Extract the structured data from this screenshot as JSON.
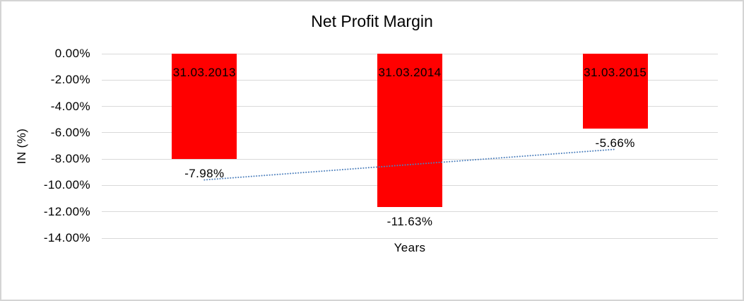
{
  "window": {
    "background": "#ffffff",
    "border_color": "#d4d4d4"
  },
  "chart_data": {
    "type": "bar",
    "title": "Net Profit Margin",
    "xlabel": "Years",
    "ylabel": "IN (%)",
    "categories": [
      "31.03.2013",
      "31.03.2014",
      "31.03.2015"
    ],
    "series": [
      {
        "name": "Net Profit Margin",
        "values": [
          -7.98,
          -11.63,
          -5.66
        ]
      }
    ],
    "data_labels": [
      "-7.98%",
      "-11.63%",
      "-5.66%"
    ],
    "ylim": [
      0,
      -14
    ],
    "ytick_labels": [
      "0.00%",
      "-2.00%",
      "-4.00%",
      "-6.00%",
      "-8.00%",
      "-10.00%",
      "-12.00%",
      "-14.00%"
    ],
    "ytick_values": [
      0,
      -2,
      -4,
      -6,
      -8,
      -10,
      -12,
      -14
    ],
    "grid": true,
    "legend": "none",
    "bar_color": "#ff0000",
    "gridline_color": "#d9d9d9",
    "text_color": "#000000",
    "trendline": {
      "type": "linear",
      "style": "dotted",
      "color": "#4f81bd",
      "start_value": -9.58,
      "end_value": -7.26
    }
  }
}
